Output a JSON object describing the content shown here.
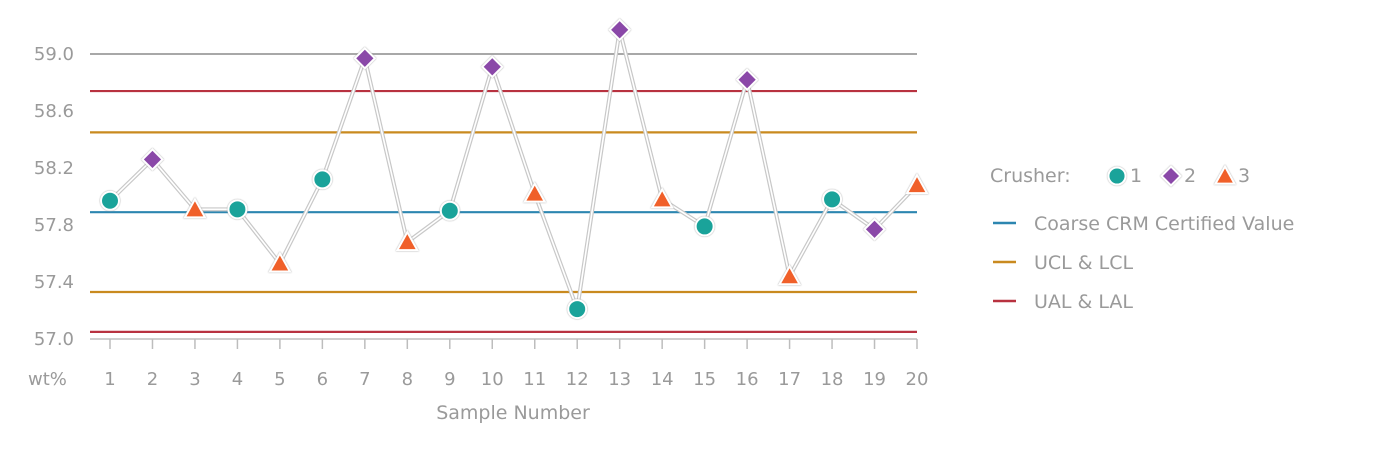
{
  "chart_data": {
    "type": "line",
    "xlabel": "Sample Number",
    "y_unit_label": "wt%",
    "ylim": [
      57.0,
      59.2
    ],
    "y_ticks": [
      "57.0",
      "57.4",
      "57.8",
      "58.2",
      "58.6",
      "59.0"
    ],
    "y_tick_values": [
      57.0,
      57.4,
      57.8,
      58.2,
      58.6,
      59.0
    ],
    "x": [
      1,
      2,
      3,
      4,
      5,
      6,
      7,
      8,
      9,
      10,
      11,
      12,
      13,
      14,
      15,
      16,
      17,
      18,
      19,
      20
    ],
    "x_tick_labels": [
      "1",
      "2",
      "3",
      "4",
      "5",
      "6",
      "7",
      "8",
      "9",
      "10",
      "11",
      "12",
      "13",
      "14",
      "15",
      "16",
      "17",
      "18",
      "19",
      "20"
    ],
    "values": [
      57.97,
      58.26,
      57.91,
      57.91,
      57.53,
      58.12,
      58.97,
      57.68,
      57.9,
      58.91,
      58.02,
      57.21,
      59.17,
      57.98,
      57.79,
      58.82,
      57.44,
      57.98,
      57.77,
      58.08
    ],
    "crusher": [
      1,
      2,
      3,
      1,
      3,
      1,
      2,
      3,
      1,
      2,
      3,
      1,
      2,
      3,
      1,
      2,
      3,
      1,
      2,
      3
    ],
    "reference_lines": [
      {
        "key": "certified",
        "value": 57.89,
        "color": "#2c86b0"
      },
      {
        "key": "ucl",
        "value": 58.45,
        "color": "#c98a1f"
      },
      {
        "key": "lcl",
        "value": 57.33,
        "color": "#c98a1f"
      },
      {
        "key": "ual",
        "value": 58.74,
        "color": "#b83240"
      },
      {
        "key": "lal",
        "value": 57.05,
        "color": "#b83240"
      }
    ],
    "grid": false,
    "legend_placement": "right",
    "legend": {
      "crusher_title": "Crusher:",
      "crushers": [
        {
          "label": "1",
          "shape": "circle",
          "color": "#1aa39a"
        },
        {
          "label": "2",
          "shape": "diamond",
          "color": "#8a48a8"
        },
        {
          "label": "3",
          "shape": "triangle",
          "color": "#f0602a"
        }
      ],
      "lines": [
        {
          "label": "Coarse CRM Certified Value",
          "color": "#2c86b0"
        },
        {
          "label": "UCL & LCL",
          "color": "#c98a1f"
        },
        {
          "label": "UAL & LAL",
          "color": "#b83240"
        }
      ]
    },
    "colors": {
      "top_rule": "#8c8c8c",
      "axis": "#bdbdbd",
      "data_line": "#c8c8c8",
      "text": "#9a9a9a"
    }
  }
}
